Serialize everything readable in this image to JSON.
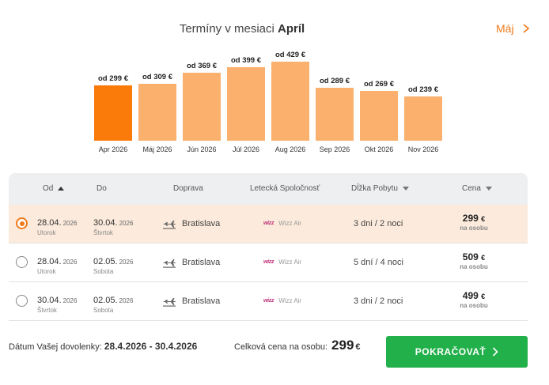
{
  "header": {
    "title_prefix": "Termíny v mesiaci",
    "title_month": "Apríl",
    "next_month_label": "Máj"
  },
  "chart_data": {
    "type": "bar",
    "categories": [
      "Apr 2026",
      "Máj 2026",
      "Jún 2026",
      "Júl 2026",
      "Aug 2026",
      "Sep 2026",
      "Okt 2026",
      "Nov 2026"
    ],
    "values": [
      299,
      309,
      369,
      399,
      429,
      289,
      269,
      239
    ],
    "price_labels": [
      "od 299 €",
      "od 309 €",
      "od 369 €",
      "od 399 €",
      "od 429 €",
      "od 289 €",
      "od 269 €",
      "od 239 €"
    ],
    "active_index": 0,
    "colors": {
      "active": "#fa7a0a",
      "inactive": "#fbb06e"
    }
  },
  "table": {
    "headers": {
      "from": "Od",
      "to": "Do",
      "transport": "Doprava",
      "airline": "Letecká Spoločnosť",
      "stay": "Dĺžka Pobytu",
      "price": "Cena"
    },
    "rows": [
      {
        "selected": true,
        "from_date": "28.04.",
        "from_year": "2026",
        "from_day": "Utorok",
        "to_date": "30.04.",
        "to_year": "2026",
        "to_day": "Štvrtok",
        "transport": "Bratislava",
        "airline_logo": "wizz",
        "airline": "Wizz Air",
        "stay": "3 dni / 2 noci",
        "price": "299",
        "currency": "€",
        "per_person": "na osobu"
      },
      {
        "selected": false,
        "from_date": "28.04.",
        "from_year": "2026",
        "from_day": "Utorok",
        "to_date": "02.05.",
        "to_year": "2026",
        "to_day": "Sobota",
        "transport": "Bratislava",
        "airline_logo": "wizz",
        "airline": "Wizz Air",
        "stay": "5 dní / 4 noci",
        "price": "509",
        "currency": "€",
        "per_person": "na osobu"
      },
      {
        "selected": false,
        "from_date": "30.04.",
        "from_year": "2026",
        "from_day": "Štvrtok",
        "to_date": "02.05.",
        "to_year": "2026",
        "to_day": "Sobota",
        "transport": "Bratislava",
        "airline_logo": "wizz",
        "airline": "Wizz Air",
        "stay": "3 dni / 2 noci",
        "price": "499",
        "currency": "€",
        "per_person": "na osobu"
      }
    ]
  },
  "footer": {
    "dates_label": "Dátum Vašej dovolenky:",
    "dates_value": "28.4.2026 - 30.4.2026",
    "total_label": "Celková cena na osobu:",
    "total_amount": "299",
    "total_currency": "€",
    "cta_label": "POKRAČOVAŤ"
  },
  "colors": {
    "accent": "#f07a1a",
    "cta": "#22b04a",
    "selected_row": "#fcebdc"
  }
}
